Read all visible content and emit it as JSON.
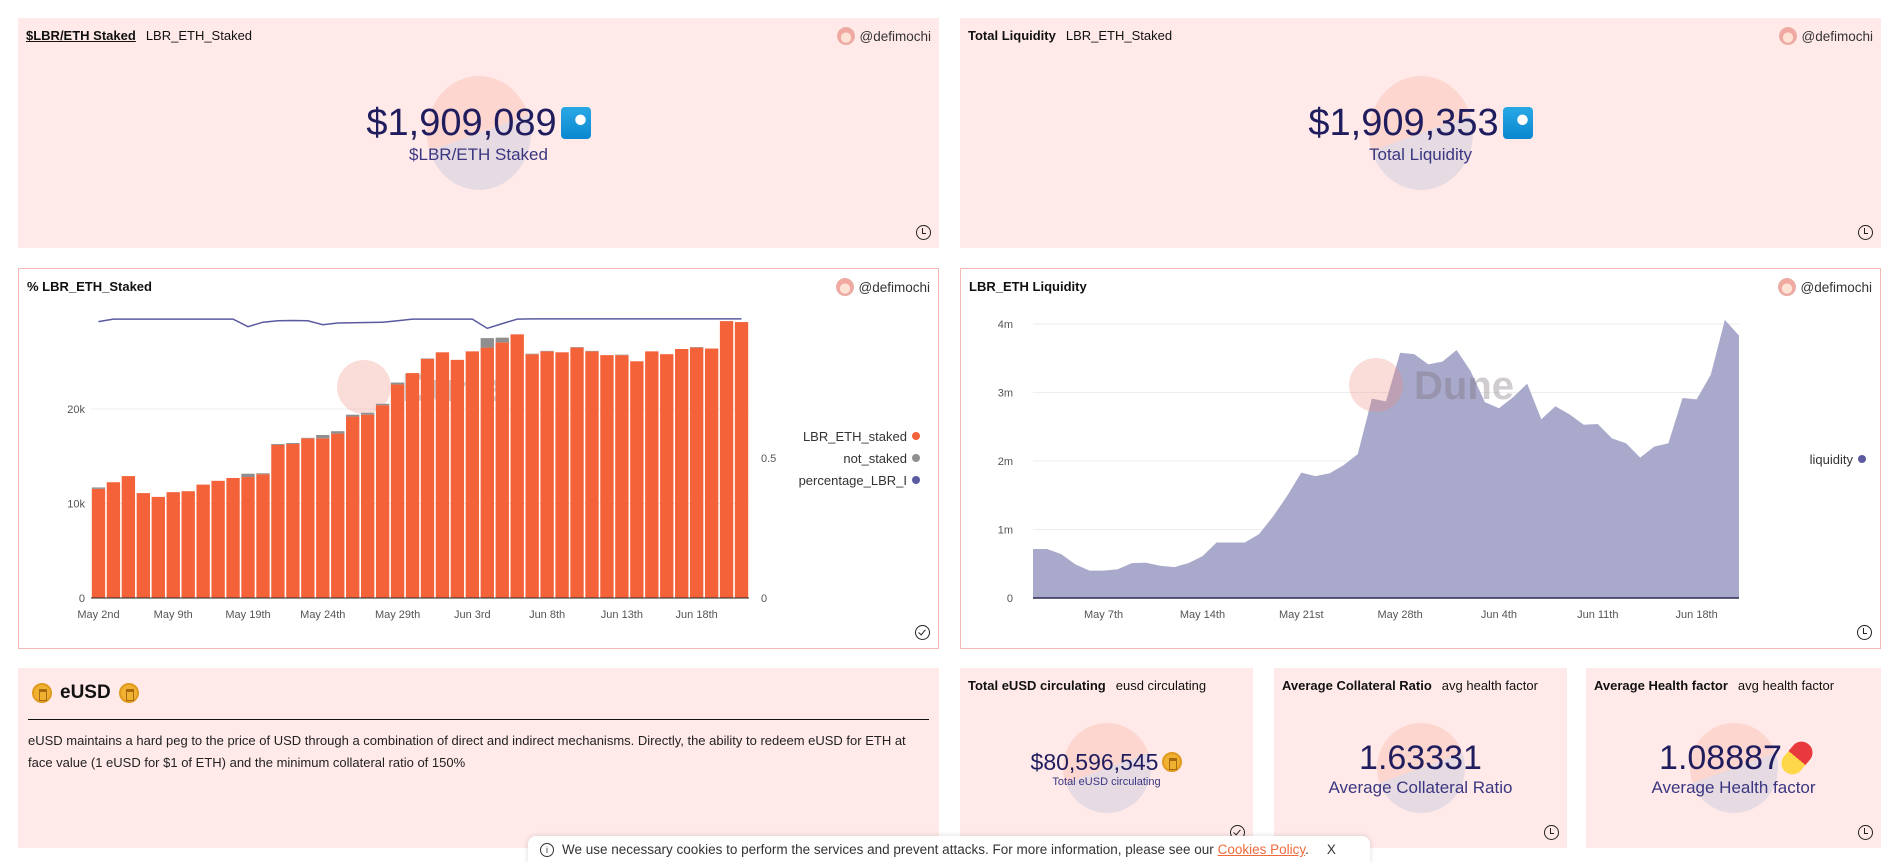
{
  "author": "@defimochi",
  "colors": {
    "panel_bg": "#ffeae9",
    "bar_staked": "#f4623a",
    "bar_not_staked": "#8f8f8f",
    "line": "#5b5aa0",
    "area": "#a9a9cb",
    "number": "#201d5e",
    "link": "#f06a3a"
  },
  "cards": {
    "staked": {
      "title": "$LBR/ETH Staked",
      "query": "LBR_ETH_Staked",
      "value": "$1,909,089",
      "label": "$LBR/ETH Staked",
      "icon": "water-wave-icon",
      "status": "clock-icon"
    },
    "liquidity": {
      "title": "Total Liquidity",
      "query": "LBR_ETH_Staked",
      "value": "$1,909,353",
      "label": "Total Liquidity",
      "icon": "water-wave-icon",
      "status": "clock-icon"
    },
    "eusd_circ": {
      "title": "Total eUSD circulating",
      "query": "eusd circulating",
      "value": "$80,596,545",
      "label": "Total eUSD circulating",
      "icon": "coin-icon",
      "status": "check-icon"
    },
    "collateral": {
      "title": "Average Collateral Ratio",
      "query": "avg health factor",
      "value": "1.63331",
      "label": "Average Collateral Ratio",
      "status": "clock-icon"
    },
    "health": {
      "title": "Average Health factor",
      "query": "avg health factor",
      "value": "1.08887",
      "label": "Average Health factor",
      "icon": "pill-icon",
      "status": "clock-icon"
    }
  },
  "text_panel": {
    "title": "eUSD",
    "body": "eUSD maintains a hard peg to the price of USD through a combination of direct and indirect mechanisms. Directly, the ability to redeem eUSD for ETH at face value (1 eUSD for $1 of ETH) and the minimum collateral ratio of 150%"
  },
  "watermark": "Dune",
  "chart_data": [
    {
      "type": "bar",
      "title": "% LBR_ETH_Staked",
      "stacked": true,
      "x_tick_labels": [
        "May 2nd",
        "May 9th",
        "May 19th",
        "May 24th",
        "May 29th",
        "Jun 3rd",
        "Jun 8th",
        "Jun 13th",
        "Jun 18th"
      ],
      "x_tick_every_n_bars": 5,
      "y_ticks": [
        "0",
        "10k",
        "20k"
      ],
      "y2_ticks": [
        "0",
        "0.5"
      ],
      "ylim": [
        0,
        30000
      ],
      "y2lim": [
        0,
        1
      ],
      "grid": true,
      "legend_position": "right",
      "series": [
        {
          "name": "LBR_ETH_staked",
          "axis": "left",
          "color": "#f4623a",
          "values": [
            11550,
            12250,
            12900,
            11100,
            10700,
            11200,
            11300,
            12000,
            12400,
            12700,
            12800,
            13100,
            16200,
            16300,
            16900,
            16900,
            17400,
            19200,
            19400,
            20400,
            22600,
            23800,
            25300,
            26000,
            25200,
            26100,
            26500,
            27050,
            27900,
            25800,
            26100,
            26000,
            26500,
            26100,
            25700,
            25700,
            25050,
            26100,
            25800,
            26350,
            26500,
            26400,
            29300,
            29200
          ]
        },
        {
          "name": "not_staked",
          "axis": "left",
          "color": "#8f8f8f",
          "values": [
            150,
            0,
            0,
            0,
            0,
            0,
            0,
            0,
            0,
            0,
            350,
            100,
            100,
            100,
            50,
            350,
            250,
            200,
            200,
            150,
            200,
            0,
            50,
            0,
            0,
            0,
            1000,
            500,
            0,
            50,
            50,
            0,
            50,
            50,
            0,
            50,
            0,
            0,
            0,
            0,
            50,
            0,
            0,
            0
          ]
        },
        {
          "name": "percentage_LBR_ETH_staked",
          "axis": "right",
          "type": "line",
          "color": "#5b5aa0",
          "values": [
            0.987,
            0.996,
            0.996,
            0.996,
            0.996,
            0.996,
            0.996,
            0.996,
            0.996,
            0.996,
            0.969,
            0.985,
            0.99,
            0.991,
            0.99,
            0.976,
            0.982,
            0.983,
            0.984,
            0.985,
            0.99,
            0.996,
            0.996,
            0.996,
            0.996,
            0.996,
            0.963,
            0.98,
            0.996,
            0.997,
            0.997,
            0.997,
            0.997,
            0.997,
            0.997,
            0.997,
            0.997,
            0.997,
            0.997,
            0.997,
            0.997,
            0.997,
            0.997,
            0.997
          ]
        }
      ],
      "legend_labels": [
        "LBR_ETH_staked",
        "not_staked",
        "percentage_LBR_I"
      ]
    },
    {
      "type": "area",
      "title": "LBR_ETH Liquidity",
      "x_start": "May 2",
      "x_end": "Jun 21",
      "x_tick_labels": [
        "May 7th",
        "May 14th",
        "May 21st",
        "May 28th",
        "Jun 4th",
        "Jun 11th",
        "Jun 18th"
      ],
      "y_ticks": [
        "0",
        "1m",
        "2m",
        "3m",
        "4m"
      ],
      "ylim": [
        0,
        4000000
      ],
      "grid": true,
      "legend_position": "right",
      "series": [
        {
          "name": "liquidity",
          "color": "#a9a9cb",
          "values": [
            715000,
            715000,
            640000,
            490000,
            400000,
            400000,
            420000,
            510000,
            515000,
            470000,
            450000,
            510000,
            610000,
            810000,
            810000,
            810000,
            930000,
            1190000,
            1490000,
            1830000,
            1780000,
            1820000,
            1940000,
            2100000,
            2910000,
            2870000,
            3580000,
            3560000,
            3410000,
            3450000,
            3620000,
            3310000,
            2860000,
            2770000,
            2930000,
            3130000,
            2610000,
            2800000,
            2680000,
            2530000,
            2540000,
            2330000,
            2260000,
            2050000,
            2210000,
            2260000,
            2920000,
            2900000,
            3260000,
            4060000,
            3830000
          ]
        }
      ]
    }
  ],
  "cookie": {
    "text": "We use necessary cookies to perform the services and prevent attacks. For more information, please see our",
    "link": "Cookies Policy",
    "close": "X"
  }
}
